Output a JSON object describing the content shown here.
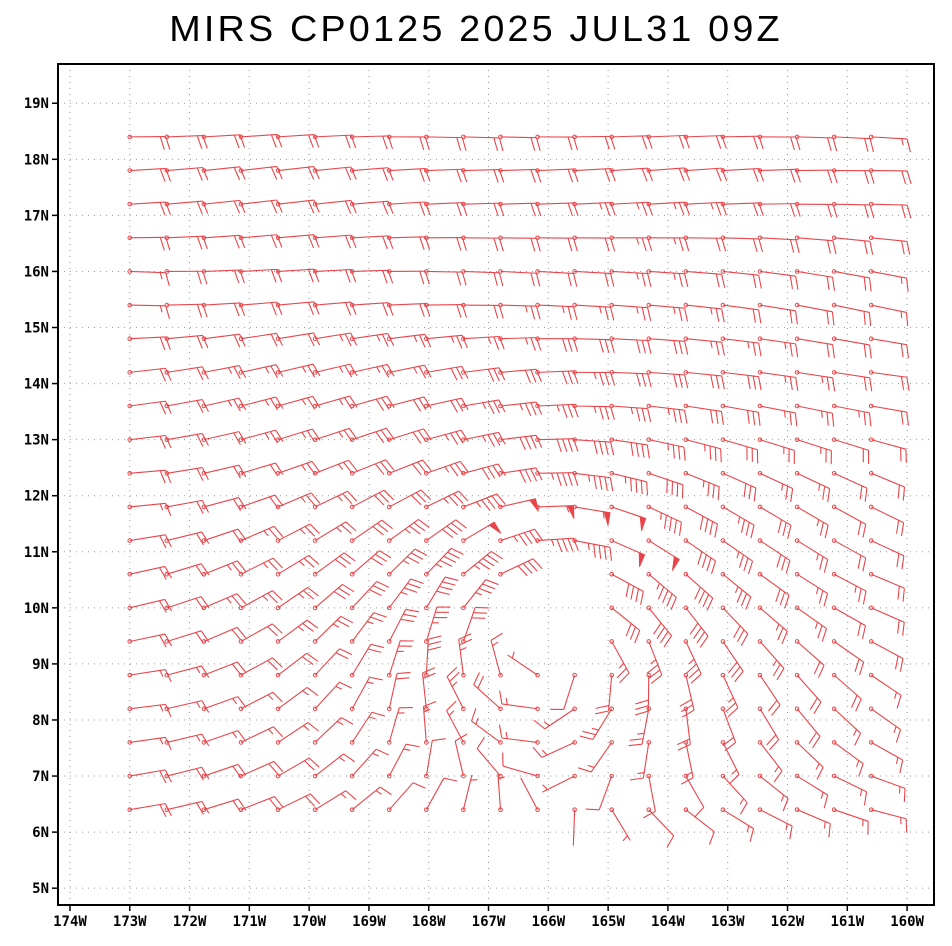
{
  "chart_data": {
    "type": "wind_barb_map",
    "title": "MIRS CP0125 2025 JUL31 09Z",
    "x_ticks": [
      "174W",
      "173W",
      "172W",
      "171W",
      "170W",
      "169W",
      "168W",
      "167W",
      "166W",
      "165W",
      "164W",
      "163W",
      "162W",
      "161W",
      "160W"
    ],
    "y_ticks": [
      "5N",
      "6N",
      "7N",
      "8N",
      "9N",
      "10N",
      "11N",
      "12N",
      "13N",
      "14N",
      "15N",
      "16N",
      "17N",
      "18N",
      "19N"
    ],
    "xlim": [
      -174.2,
      -159.55
    ],
    "ylim": [
      4.7,
      19.7
    ],
    "grid": true,
    "grid_style": "dotted",
    "barb_color": "#e8454a",
    "domain": {
      "lon": [
        -173.0,
        -160.2
      ],
      "lat": [
        6.4,
        18.4
      ]
    },
    "circulation_center": {
      "lon": -166.0,
      "lat": 9.8
    },
    "background_flow": "easterly trade winds",
    "barb_units": "kt"
  }
}
